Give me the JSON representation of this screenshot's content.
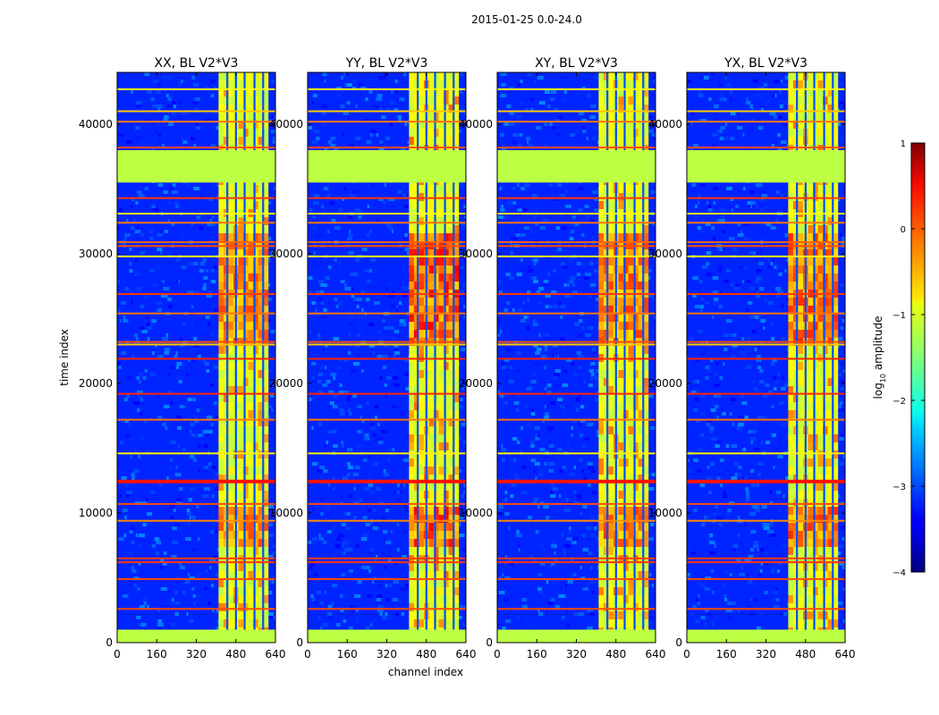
{
  "figure": {
    "suptitle": "2015-01-25 0.0-24.0",
    "colors": {
      "background": "#ffffff",
      "axes_edge": "#000000"
    }
  },
  "chart_data": {
    "type": "heatmap",
    "xlabel": "channel index",
    "ylabel": "time index",
    "xlim": [
      0,
      640
    ],
    "ylim": [
      0,
      44000
    ],
    "xticks": [
      0,
      160,
      320,
      480,
      640
    ],
    "yticks": [
      0,
      10000,
      20000,
      30000,
      40000
    ],
    "xtick_labels": [
      "0",
      "160",
      "320",
      "480",
      "640"
    ],
    "ytick_labels": [
      "0",
      "10000",
      "20000",
      "30000",
      "40000"
    ],
    "panels": [
      {
        "title": "XX, BL V2*V3",
        "strength": 0.75
      },
      {
        "title": "YY, BL V2*V3",
        "strength": 1.0
      },
      {
        "title": "XY, BL V2*V3",
        "strength": 0.8
      },
      {
        "title": "YX, BL V2*V3",
        "strength": 0.85
      }
    ],
    "background_level": -3.2,
    "flagged_rows": [
      [
        0,
        1000
      ],
      [
        35500,
        38000
      ]
    ],
    "flagged_level": -1.2,
    "band_channels": [
      410,
      610
    ],
    "band_gaps": [
      445,
      480,
      515,
      555,
      590
    ],
    "band_level": -1.0,
    "hot_time_ranges": [
      [
        7500,
        10500
      ],
      [
        23000,
        31500
      ]
    ],
    "hot_level": 0.2,
    "horizontal_lines": [
      {
        "t": 2600,
        "level": 0.0
      },
      {
        "t": 4900,
        "level": 0.0
      },
      {
        "t": 6200,
        "level": 0.1
      },
      {
        "t": 6500,
        "level": 0.1
      },
      {
        "t": 9400,
        "level": -0.3
      },
      {
        "t": 10700,
        "level": 0.0
      },
      {
        "t": 12500,
        "level": 0.3
      },
      {
        "t": 14600,
        "level": -0.8
      },
      {
        "t": 17200,
        "level": -0.2
      },
      {
        "t": 19200,
        "level": 0.2
      },
      {
        "t": 21900,
        "level": 0.2
      },
      {
        "t": 23000,
        "level": -0.6
      },
      {
        "t": 23200,
        "level": 0.0
      },
      {
        "t": 25400,
        "level": -0.2
      },
      {
        "t": 26900,
        "level": 0.1
      },
      {
        "t": 29800,
        "level": -0.9
      },
      {
        "t": 30600,
        "level": 0.0
      },
      {
        "t": 30900,
        "level": -0.1
      },
      {
        "t": 32400,
        "level": -0.2
      },
      {
        "t": 33100,
        "level": -0.9
      },
      {
        "t": 34300,
        "level": 0.1
      },
      {
        "t": 38200,
        "level": 0.0
      },
      {
        "t": 40200,
        "level": -0.2
      },
      {
        "t": 41000,
        "level": -0.6
      },
      {
        "t": 42700,
        "level": -0.9
      }
    ],
    "colorbar": {
      "label": "log10 amplitude",
      "label_main": "log",
      "label_sub": "10",
      "label_rest": " amplitude",
      "range": [
        -4,
        1
      ],
      "ticks": [
        1,
        0,
        -1,
        -2,
        -3,
        -4
      ],
      "tick_labels": [
        "1",
        "0",
        "−1",
        "−2",
        "−3",
        "−4"
      ],
      "colormap": "jet"
    }
  }
}
